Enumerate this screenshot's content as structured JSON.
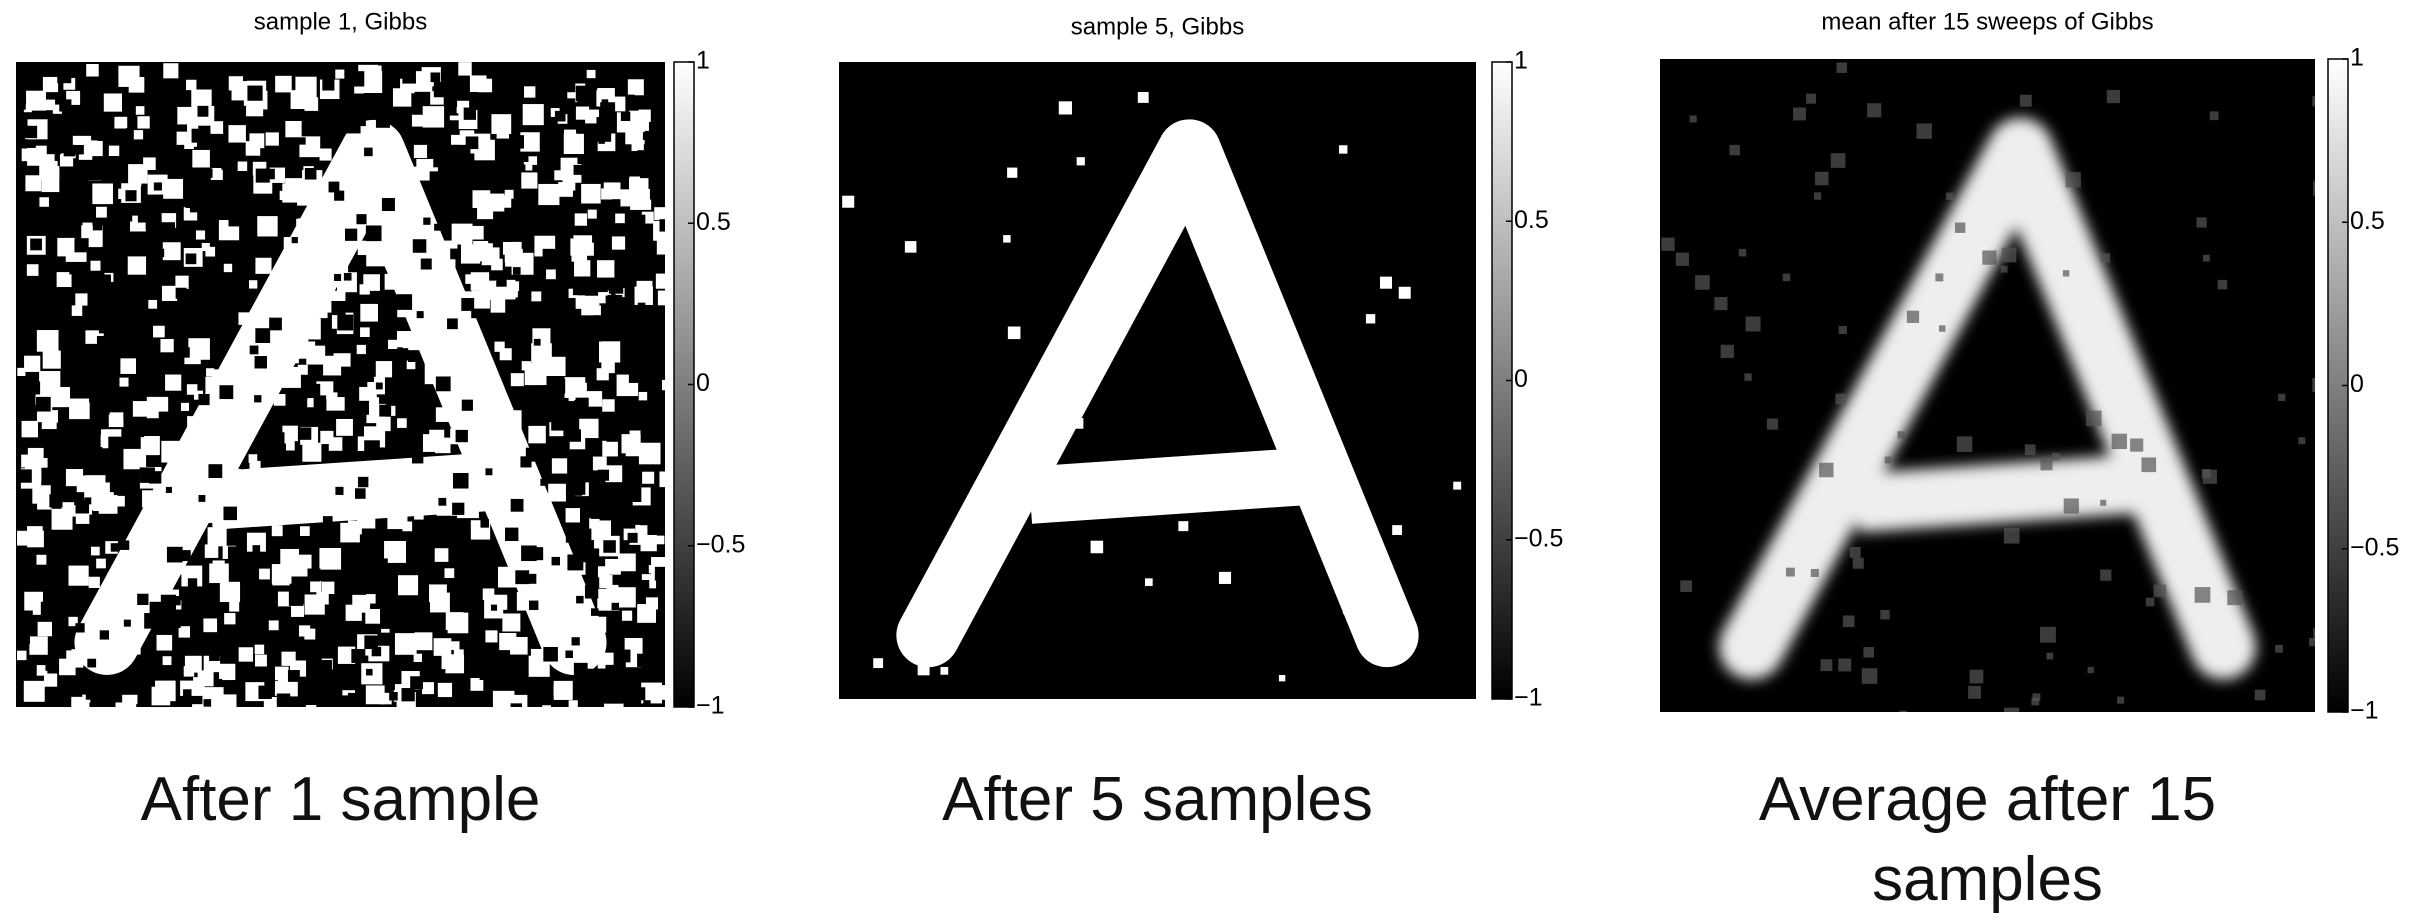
{
  "chart_data": [
    {
      "type": "image",
      "title": "sample 1, Gibbs",
      "caption": "After 1 sample",
      "colorbar": {
        "ylim": [
          -1,
          1
        ],
        "yticks": [
          {
            "value": -1,
            "label": "−1"
          },
          {
            "value": -0.5,
            "label": "−0.5"
          },
          0,
          0.5,
          1
        ]
      }
    },
    {
      "type": "image",
      "title": "sample 5, Gibbs",
      "caption": "After 5 samples",
      "colorbar": {
        "ylim": [
          -1,
          1
        ],
        "yticks": [
          {
            "value": -1,
            "label": "−1"
          },
          {
            "value": -0.5,
            "label": "−0.5"
          },
          0,
          0.5,
          1
        ]
      }
    },
    {
      "type": "image",
      "title": "mean after 15 sweeps of Gibbs",
      "caption": "Average after 15 samples",
      "colorbar": {
        "ylim": [
          -1,
          1
        ],
        "yticks": [
          {
            "value": -1,
            "label": "−1"
          },
          {
            "value": -0.5,
            "label": "−0.5"
          },
          0,
          0.5,
          1
        ]
      }
    }
  ]
}
